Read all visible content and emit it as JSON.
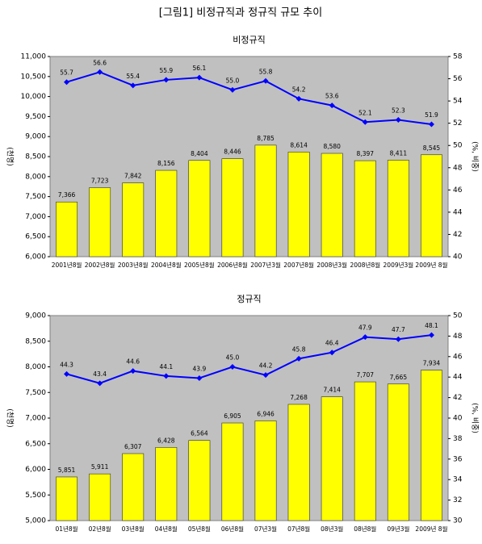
{
  "title": "[그림1] 비정규직과 정규직 규모 추이",
  "chart_data": [
    {
      "type": "combo",
      "title": "비정규직",
      "y_label": "(천명)",
      "y2_label": "(%, 비중)",
      "categories": [
        "2001년8월",
        "2002년8월",
        "2003년8월",
        "2004년8월",
        "2005년8월",
        "2006년8월",
        "2007년3월",
        "2007년8월",
        "2008년3월",
        "2008년8월",
        "2009년3월",
        "2009년 8월"
      ],
      "series": [
        {
          "type": "bar",
          "color": "#ffff00",
          "values": [
            7366,
            7723,
            7842,
            8156,
            8404,
            8446,
            8785,
            8614,
            8580,
            8397,
            8411,
            8545
          ],
          "value_labels": [
            "7,366",
            "7,723",
            "7,842",
            "8,156",
            "8,404",
            "8,446",
            "8,785",
            "8,614",
            "8,580",
            "8,397",
            "8,411",
            "8,545"
          ]
        },
        {
          "type": "line",
          "color": "#0000ff",
          "axis": "y2",
          "values": [
            55.7,
            56.6,
            55.4,
            55.9,
            56.1,
            55.0,
            55.8,
            54.2,
            53.6,
            52.1,
            52.3,
            51.9
          ],
          "value_labels": [
            "55.7",
            "56.6",
            "55.4",
            "55.9",
            "56.1",
            "55.0",
            "55.8",
            "54.2",
            "53.6",
            "52.1",
            "52.3",
            "51.9"
          ]
        }
      ],
      "ylim": [
        6000,
        11000
      ],
      "yticks": [
        {
          "value": 6000,
          "label": "6,000"
        },
        {
          "value": 6500,
          "label": "6,500"
        },
        {
          "value": 7000,
          "label": "7,000"
        },
        {
          "value": 7500,
          "label": "7,500"
        },
        {
          "value": 8000,
          "label": "8,000"
        },
        {
          "value": 8500,
          "label": "8,500"
        },
        {
          "value": 9000,
          "label": "9,000"
        },
        {
          "value": 9500,
          "label": "9,500"
        },
        {
          "value": 10000,
          "label": "10,000"
        },
        {
          "value": 10500,
          "label": "10,500"
        },
        {
          "value": 11000,
          "label": "11,000"
        }
      ],
      "y2lim": [
        40,
        58
      ],
      "y2ticks": [
        40,
        42,
        44,
        46,
        48,
        50,
        52,
        54,
        56,
        58
      ]
    },
    {
      "type": "combo",
      "title": "정규직",
      "y_label": "(천명)",
      "y2_label": "(%, 비중)",
      "categories": [
        "01년8월",
        "02년8월",
        "03년8월",
        "04년8월",
        "05년8월",
        "06년8월",
        "07년3월",
        "07년8월",
        "08년3월",
        "08년8월",
        "09년3월",
        "2009년 8월"
      ],
      "series": [
        {
          "type": "bar",
          "color": "#ffff00",
          "values": [
            5851,
            5911,
            6307,
            6428,
            6564,
            6905,
            6946,
            7268,
            7414,
            7707,
            7665,
            7934
          ],
          "value_labels": [
            "5,851",
            "5,911",
            "6,307",
            "6,428",
            "6,564",
            "6,905",
            "6,946",
            "7,268",
            "7,414",
            "7,707",
            "7,665",
            "7,934"
          ]
        },
        {
          "type": "line",
          "color": "#0000ff",
          "axis": "y2",
          "values": [
            44.3,
            43.4,
            44.6,
            44.1,
            43.9,
            45.0,
            44.2,
            45.8,
            46.4,
            47.9,
            47.7,
            48.1
          ],
          "value_labels": [
            "44.3",
            "43.4",
            "44.6",
            "44.1",
            "43.9",
            "45.0",
            "44.2",
            "45.8",
            "46.4",
            "47.9",
            "47.7",
            "48.1"
          ]
        }
      ],
      "ylim": [
        5000,
        9000
      ],
      "yticks": [
        {
          "value": 5000,
          "label": "5,000"
        },
        {
          "value": 5500,
          "label": "5,500"
        },
        {
          "value": 6000,
          "label": "6,000"
        },
        {
          "value": 6500,
          "label": "6,500"
        },
        {
          "value": 7000,
          "label": "7,000"
        },
        {
          "value": 7500,
          "label": "7,500"
        },
        {
          "value": 8000,
          "label": "8,000"
        },
        {
          "value": 8500,
          "label": "8,500"
        },
        {
          "value": 9000,
          "label": "9,000"
        }
      ],
      "y2lim": [
        30,
        50
      ],
      "y2ticks": [
        30,
        32,
        34,
        36,
        38,
        40,
        42,
        44,
        46,
        48,
        50
      ]
    }
  ]
}
